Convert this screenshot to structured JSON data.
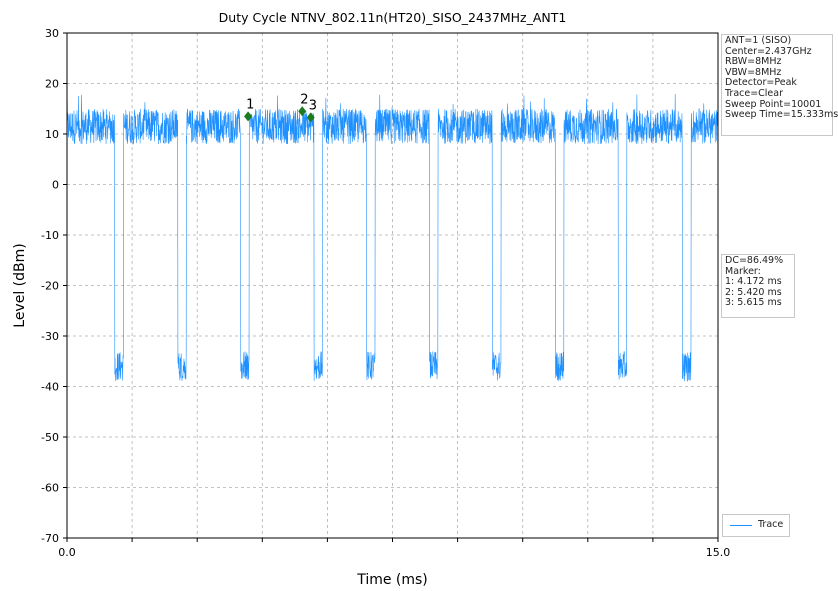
{
  "chart_data": {
    "type": "line",
    "title": "Duty Cycle NTNV_802.11n(HT20)_SISO_2437MHz_ANT1",
    "xlabel": "Time (ms)",
    "ylabel": "Level (dBm)",
    "xlim": [
      0,
      15
    ],
    "ylim": [
      -70,
      30
    ],
    "x_tick_labels": [
      "0.0",
      "15.0"
    ],
    "y_ticks": [
      30,
      20,
      10,
      0,
      -10,
      -20,
      -30,
      -40,
      -50,
      -60,
      -70
    ],
    "grid": true,
    "legend_position": "bottom-right",
    "series": [
      {
        "name": "Trace",
        "color": "#1e90ff",
        "on_level_dbm": 11.5,
        "off_level_dbm": -36,
        "on_periods_ms": [
          [
            0,
            1.1
          ],
          [
            1.3,
            2.55
          ],
          [
            2.75,
            4.0
          ],
          [
            4.2,
            5.69
          ],
          [
            5.89,
            6.9
          ],
          [
            7.1,
            8.35
          ],
          [
            8.55,
            9.8
          ],
          [
            10.0,
            11.25
          ],
          [
            11.45,
            12.7
          ],
          [
            12.9,
            14.18
          ],
          [
            14.38,
            15.0
          ]
        ]
      }
    ],
    "markers": [
      {
        "label": "1",
        "x": 4.172,
        "y": 13.5
      },
      {
        "label": "2",
        "x": 5.42,
        "y": 14.5
      },
      {
        "label": "3",
        "x": 5.615,
        "y": 13.3
      }
    ]
  },
  "settings_box": [
    "ANT=1 (SISO)",
    "Center=2.437GHz",
    "RBW=8MHz",
    "VBW=8MHz",
    "Detector=Peak",
    "Trace=Clear",
    "Sweep Point=10001",
    "Sweep Time=15.333ms"
  ],
  "dc_box": [
    "DC=86.49%",
    "Marker:",
    "1: 4.172 ms",
    "2: 5.420 ms",
    "3: 5.615 ms"
  ],
  "legend": {
    "label": "Trace"
  },
  "colors": {
    "trace": "#1e90ff",
    "marker": "#1e7a1e",
    "grid": "#b0b0b0"
  }
}
